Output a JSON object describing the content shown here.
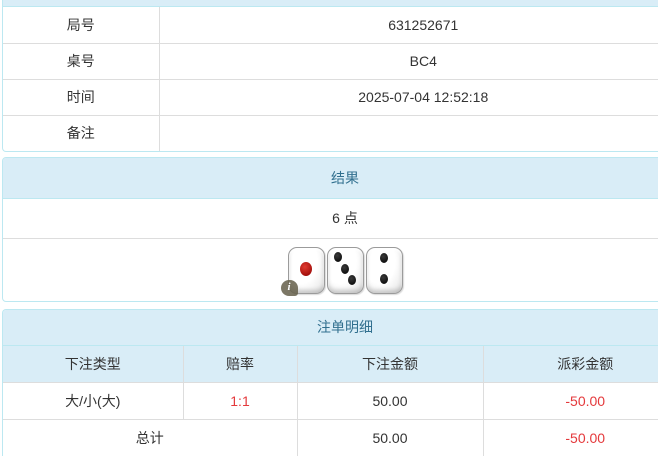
{
  "colors": {
    "header_bg": "#d9edf7",
    "panel_border": "#bce8f1",
    "header_text": "#31708f",
    "body_text": "#333333",
    "row_border": "#dddddd",
    "negative_red": "#e4393c",
    "die_pip_red": "#8e0000",
    "die_pip_black": "#000000"
  },
  "info_table": {
    "rows": [
      {
        "label": "局号",
        "value": "631252671"
      },
      {
        "label": "桌号",
        "value": "BC4"
      },
      {
        "label": "时间",
        "value": "2025-07-04 12:52:18"
      },
      {
        "label": "备注",
        "value": ""
      }
    ]
  },
  "result_panel": {
    "title": "结果",
    "points": "6 点",
    "dice": [
      1,
      3,
      2
    ],
    "info_icon_glyph": "i"
  },
  "bets_panel": {
    "title": "注单明细",
    "headers": [
      "下注类型",
      "赔率",
      "下注金额",
      "派彩金额"
    ],
    "rows": [
      {
        "type": "大/小(大)",
        "odds": "1:1",
        "bet": "50.00",
        "payout": "-50.00"
      }
    ],
    "total": {
      "label": "总计",
      "bet": "50.00",
      "payout": "-50.00"
    }
  }
}
